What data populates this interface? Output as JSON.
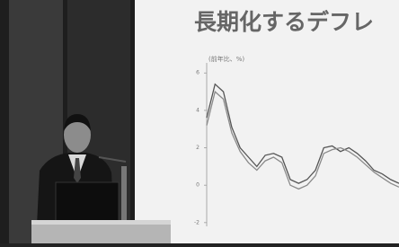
{
  "slide": {
    "title": "長期化するデフレ",
    "unit_label": "(前年比、%)",
    "chart_data": {
      "type": "line",
      "categories": [
        null,
        null,
        null,
        null,
        null,
        null,
        null,
        null,
        null,
        null,
        null,
        null,
        null,
        null,
        null,
        null,
        null,
        null,
        null,
        null,
        null,
        null,
        null,
        null
      ],
      "series": [
        {
          "color": "#555555",
          "values": [
            3.6,
            5.4,
            5.0,
            3.1,
            2.0,
            1.5,
            1.0,
            1.6,
            1.7,
            1.5,
            0.3,
            0.1,
            0.3,
            0.8,
            2.0,
            2.1,
            1.8,
            2.0,
            1.7,
            1.3,
            0.8,
            0.6,
            0.3,
            0.1
          ]
        },
        {
          "color": "#8a8a8a",
          "values": [
            3.2,
            5.0,
            4.6,
            2.8,
            1.8,
            1.2,
            0.8,
            1.3,
            1.5,
            1.2,
            0.0,
            -0.2,
            0.0,
            0.5,
            1.7,
            1.9,
            2.0,
            1.8,
            1.5,
            1.1,
            0.7,
            0.4,
            0.1,
            -0.1
          ]
        }
      ],
      "ylim": [
        -2.2,
        6.3
      ],
      "yticks": [
        6,
        4,
        2,
        0,
        -2
      ]
    }
  }
}
